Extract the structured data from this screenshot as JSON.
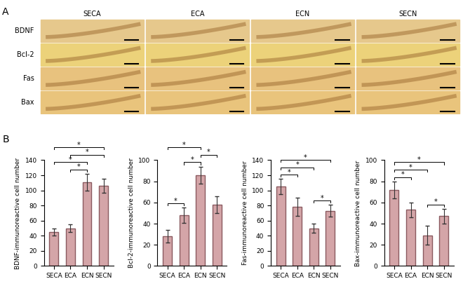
{
  "figure": {
    "panel_labels": [
      "A",
      "B"
    ],
    "image_grid": {
      "columns": [
        "SECA",
        "ECA",
        "ECN",
        "SECN"
      ],
      "rows": [
        "BDNF",
        "Bcl-2",
        "Fas",
        "Bax"
      ]
    }
  },
  "chart_data": [
    {
      "type": "bar",
      "ylabel": "BDNF-immunoreactive cell number",
      "categories": [
        "SECA",
        "ECA",
        "ECN",
        "SECN"
      ],
      "values": [
        45,
        50,
        111,
        106
      ],
      "errors": [
        5,
        5,
        11,
        9
      ],
      "color": "#d4a5a8",
      "ylim": [
        0,
        140
      ],
      "yticks": [
        0,
        20,
        40,
        60,
        80,
        100,
        120,
        140
      ],
      "significance": [
        [
          "ECA",
          "ECN"
        ],
        [
          "SECA",
          "ECN"
        ],
        [
          "ECA",
          "SECN"
        ],
        [
          "SECA",
          "SECN"
        ]
      ],
      "significance_label": "*"
    },
    {
      "type": "bar",
      "ylabel": "Bcl-2-immunoreactive cell number",
      "categories": [
        "SECA",
        "ECA",
        "ECN",
        "SECN"
      ],
      "values": [
        28,
        48,
        86,
        58
      ],
      "errors": [
        6,
        7,
        8,
        8
      ],
      "color": "#d4a5a8",
      "ylim": [
        0,
        100
      ],
      "yticks": [
        0,
        20,
        40,
        60,
        80,
        100
      ],
      "significance": [
        [
          "SECA",
          "ECA"
        ],
        [
          "ECA",
          "ECN"
        ],
        [
          "ECN",
          "SECN"
        ],
        [
          "SECA",
          "ECN"
        ]
      ],
      "significance_label": "*"
    },
    {
      "type": "bar",
      "ylabel": "Fas-immunoreactive cell number",
      "categories": [
        "SECA",
        "ECA",
        "ECN",
        "SECN"
      ],
      "values": [
        105,
        78,
        50,
        73
      ],
      "errors": [
        10,
        12,
        6,
        8
      ],
      "color": "#d4a5a8",
      "ylim": [
        0,
        140
      ],
      "yticks": [
        0,
        20,
        40,
        60,
        80,
        100,
        120,
        140
      ],
      "significance": [
        [
          "SECA",
          "ECA"
        ],
        [
          "ECN",
          "SECN"
        ],
        [
          "SECA",
          "ECN"
        ],
        [
          "SECA",
          "SECN"
        ]
      ],
      "significance_label": "*"
    },
    {
      "type": "bar",
      "ylabel": "Bax-immunoreactive cell number",
      "categories": [
        "SECA",
        "ECA",
        "ECN",
        "SECN"
      ],
      "values": [
        72,
        53,
        29,
        47
      ],
      "errors": [
        8,
        7,
        9,
        7
      ],
      "color": "#d4a5a8",
      "ylim": [
        0,
        100
      ],
      "yticks": [
        0,
        20,
        40,
        60,
        80,
        100
      ],
      "significance": [
        [
          "SECA",
          "ECA"
        ],
        [
          "ECN",
          "SECN"
        ],
        [
          "SECA",
          "ECN"
        ],
        [
          "SECA",
          "SECN"
        ]
      ],
      "significance_label": "*"
    }
  ]
}
